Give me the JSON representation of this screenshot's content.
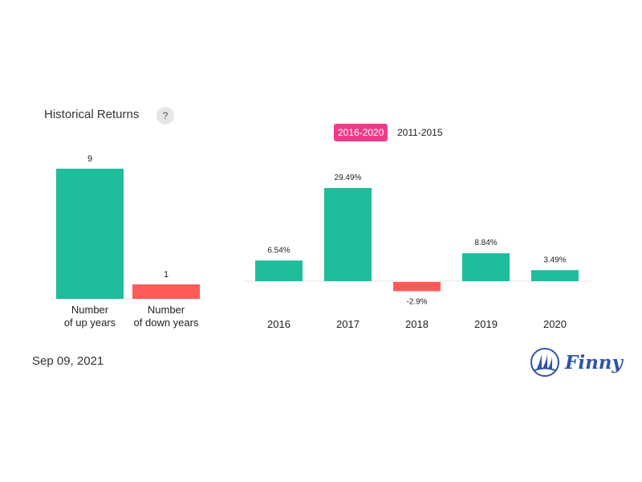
{
  "header": {
    "title": "Historical Returns",
    "help_label": "?"
  },
  "tabs": [
    {
      "label": "2016-2020",
      "active": true
    },
    {
      "label": "2011-2015",
      "active": false
    }
  ],
  "footer": {
    "date": "Sep 09, 2021",
    "brand": "Finny",
    "brand_icon": "sailboat-logo-icon"
  },
  "colors": {
    "positive": "#1ebd9c",
    "negative": "#ff5a5a",
    "accent": "#f03b8b",
    "brand": "#2f54a8"
  },
  "chart_data": [
    {
      "type": "bar",
      "categories": [
        [
          "Number",
          "of up years"
        ],
        [
          "Number",
          "of down years"
        ]
      ],
      "values": [
        9,
        1
      ],
      "value_labels": [
        "9",
        "1"
      ]
    },
    {
      "type": "bar",
      "categories": [
        "2016",
        "2017",
        "2018",
        "2019",
        "2020"
      ],
      "values": [
        6.54,
        29.49,
        -2.9,
        8.84,
        3.49
      ],
      "value_labels": [
        "6.54%",
        "29.49%",
        "-2.9%",
        "8.84%",
        "3.49%"
      ],
      "unit": "%"
    }
  ]
}
